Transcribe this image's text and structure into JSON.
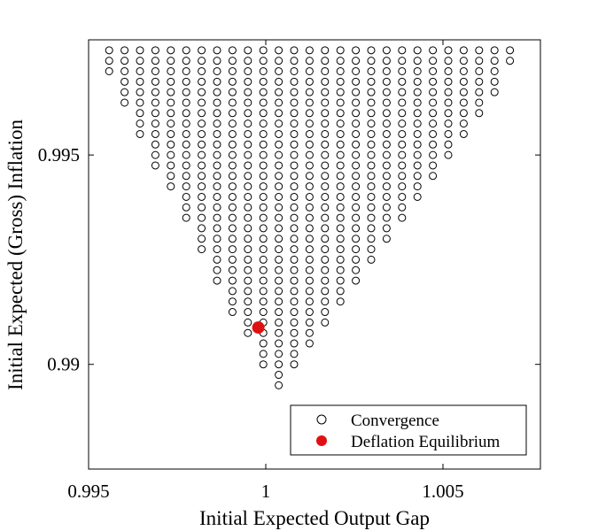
{
  "chart_data": {
    "type": "scatter",
    "xlabel": "Initial Expected Output Gap",
    "ylabel": "Initial Expected (Gross) Inflation",
    "xlim": [
      0.995,
      1.00775
    ],
    "ylim": [
      0.9875,
      0.99775
    ],
    "xticks": [
      0.995,
      1.0,
      1.005
    ],
    "xtick_labels": [
      "0.995",
      "1",
      "1.005"
    ],
    "yticks": [
      0.99,
      0.995
    ],
    "ytick_labels": [
      "0.99",
      "0.995"
    ],
    "grid": false,
    "legend_position": "bottom-right",
    "legend": {
      "convergence_label": "Convergence",
      "deflation_label": "Deflation Equilibrium"
    },
    "series": [
      {
        "name": "Convergence",
        "marker": "open-circle",
        "color": "#000000",
        "grid_x_start": 0.99558,
        "grid_x_step": 0.000435,
        "grid_y_top": 0.9975,
        "grid_y_step": 0.00025,
        "rows": [
          [
            0,
            26
          ],
          [
            0,
            26
          ],
          [
            0,
            25
          ],
          [
            1,
            25
          ],
          [
            1,
            25
          ],
          [
            1,
            24
          ],
          [
            2,
            24
          ],
          [
            2,
            23
          ],
          [
            2,
            23
          ],
          [
            3,
            22
          ],
          [
            3,
            22
          ],
          [
            3,
            21
          ],
          [
            4,
            21
          ],
          [
            4,
            20
          ],
          [
            5,
            20
          ],
          [
            5,
            19
          ],
          [
            5,
            19
          ],
          [
            6,
            18
          ],
          [
            6,
            18
          ],
          [
            6,
            17
          ],
          [
            7,
            17
          ],
          [
            7,
            16
          ],
          [
            7,
            16
          ],
          [
            8,
            15
          ],
          [
            8,
            15
          ],
          [
            8,
            14
          ],
          [
            9,
            14
          ],
          [
            9,
            13
          ],
          [
            10,
            13
          ],
          [
            10,
            12
          ],
          [
            10,
            12
          ],
          [
            11,
            11
          ],
          [
            11,
            11
          ],
          [
            11,
            10
          ],
          [
            12,
            10
          ],
          [
            12,
            9
          ],
          [
            12,
            9
          ]
        ]
      },
      {
        "name": "Deflation Equilibrium",
        "marker": "filled-circle",
        "color": "#e01010",
        "points": [
          [
            0.99979,
            0.99088
          ]
        ]
      }
    ]
  }
}
